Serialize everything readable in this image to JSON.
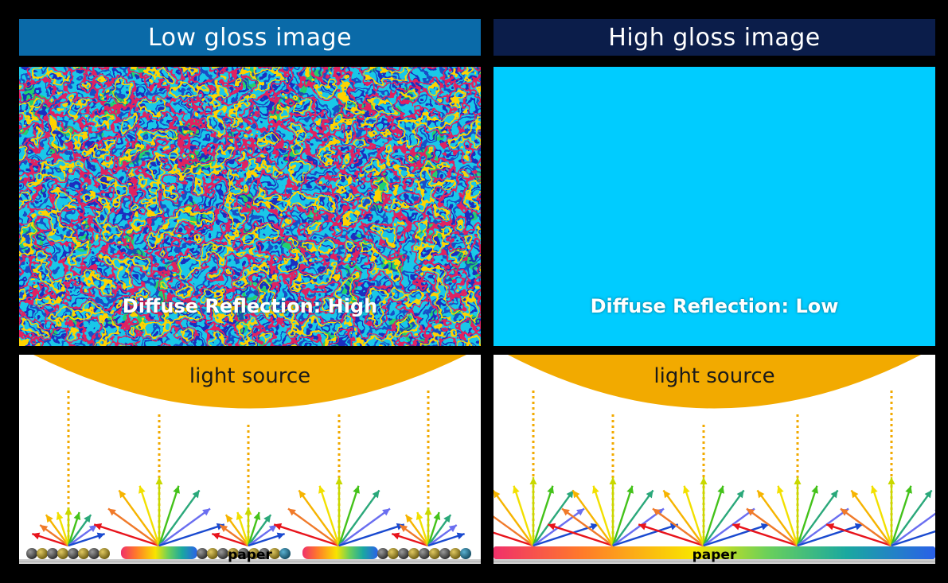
{
  "left": {
    "header": "Low gloss image",
    "diffuse_label": "Diffuse Reflection: High",
    "light_source_label": "light source",
    "paper_label": "paper",
    "header_color": "#0a6aa8"
  },
  "right": {
    "header": "High gloss image",
    "diffuse_label": "Diffuse Reflection: Low",
    "light_source_label": "light source",
    "paper_label": "paper",
    "header_color": "#0b1d4a"
  },
  "colors": {
    "light_source": "#f2aa00",
    "texture_base": "#00ccff",
    "paper": "#c8c8c8"
  },
  "icons": [
    "arrow-fan-icon",
    "particle-icon",
    "light-source-icon"
  ]
}
